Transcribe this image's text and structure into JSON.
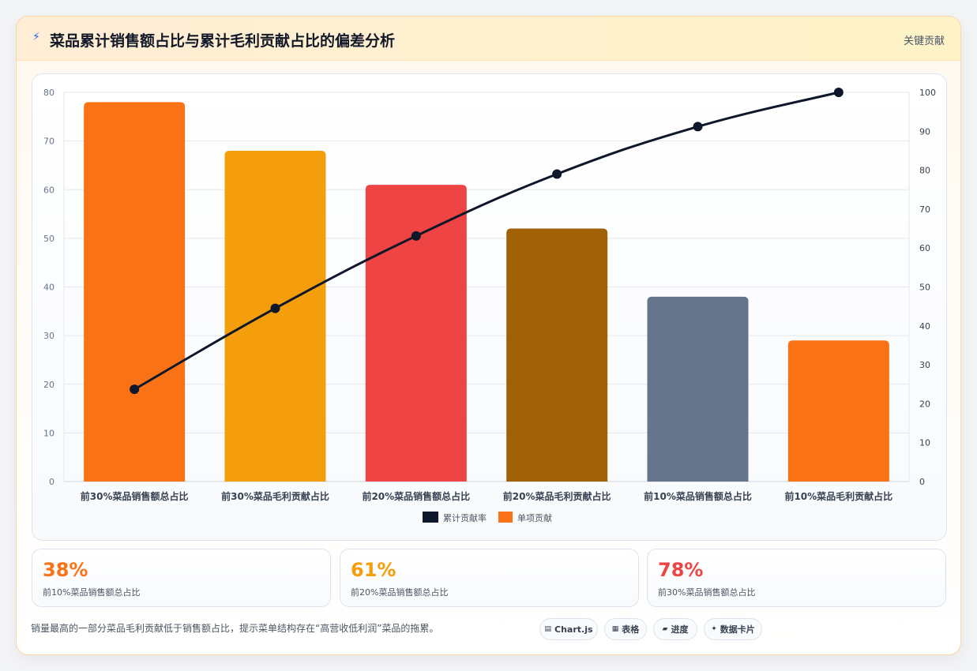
{
  "header": {
    "icon": "lightning-icon",
    "title": "菜品累计销售额占比与累计毛利贡献占比的偏差分析",
    "badge": "关键贡献"
  },
  "chart_data": {
    "type": "bar",
    "categories": [
      "前30%菜品销售额总占比",
      "前30%菜品毛利贡献占比",
      "前20%菜品销售额总占比",
      "前20%菜品毛利贡献占比",
      "前10%菜品销售额总占比",
      "前10%菜品毛利贡献占比"
    ],
    "series": [
      {
        "name": "单项贡献",
        "type": "bar",
        "axis": "left",
        "values": [
          78,
          68,
          61,
          52,
          38,
          29
        ],
        "colors": [
          "#f97316",
          "#f59e0b",
          "#ef4444",
          "#a16207",
          "#64748b",
          "#f97316"
        ]
      },
      {
        "name": "累计贡献率",
        "type": "line",
        "axis": "right",
        "values": [
          23.7,
          44.5,
          63.1,
          79.0,
          91.2,
          100
        ],
        "color": "#0f172a"
      }
    ],
    "left_axis": {
      "ylim": [
        0,
        80
      ],
      "ticks": [
        0,
        10,
        20,
        30,
        40,
        50,
        60,
        70,
        80
      ]
    },
    "right_axis": {
      "ylim": [
        0,
        100
      ],
      "ticks": [
        0,
        10,
        20,
        30,
        40,
        50,
        60,
        70,
        80,
        90,
        100
      ]
    },
    "grid": true,
    "legend": "bottom-center"
  },
  "stats": [
    {
      "value": "38%",
      "label": "前10%菜品销售额总占比",
      "color": "#f97316"
    },
    {
      "value": "61%",
      "label": "前20%菜品销售额总占比",
      "color": "#f59e0b"
    },
    {
      "value": "78%",
      "label": "前30%菜品销售额总占比",
      "color": "#ef4444"
    }
  ],
  "footnote": "销量最高的一部分菜品毛利贡献低于销售额占比，提示菜单结构存在“高营收低利润”菜品的拖累。",
  "pills": [
    {
      "icon": "▤",
      "label": "Chart.js"
    },
    {
      "icon": "▦",
      "label": "表格"
    },
    {
      "icon": "▰",
      "label": "进度"
    },
    {
      "icon": "✦",
      "label": "数据卡片"
    }
  ]
}
